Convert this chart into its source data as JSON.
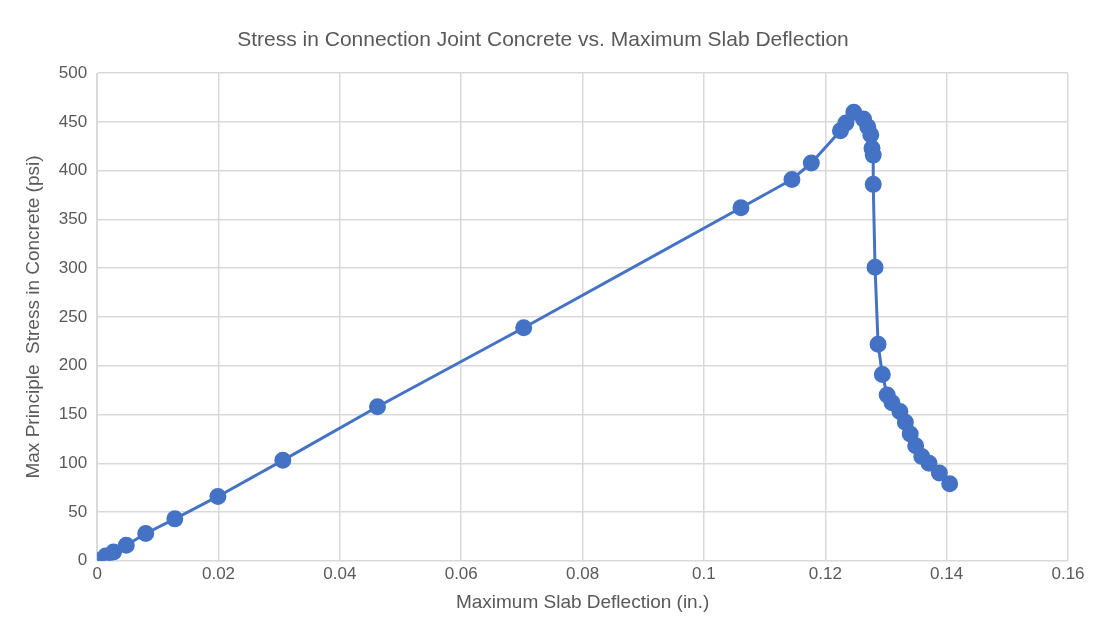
{
  "chart_data": {
    "type": "line",
    "title": "Stress in Connection Joint Concrete vs. Maximum Slab Deflection",
    "xlabel": "Maximum Slab Deflection (in.)",
    "ylabel": "Max Principle  Stress in Concrete (psi)",
    "x": [
      0,
      0.0014,
      0.0027,
      0.0048,
      0.008,
      0.0128,
      0.0199,
      0.0306,
      0.0462,
      0.0703,
      0.1061,
      0.1145,
      0.1177,
      0.1225,
      0.1234,
      0.1247,
      0.1263,
      0.127,
      0.1275,
      0.1277,
      0.1279,
      0.1279,
      0.1282,
      0.1287,
      0.1294,
      0.1302,
      0.131,
      0.1323,
      0.1332,
      0.134,
      0.1349,
      0.1359,
      0.1371,
      0.1388,
      0.1405
    ],
    "series": [
      {
        "color": "#4472c4",
        "values": [
          0,
          5,
          9,
          16,
          28,
          43,
          66,
          103,
          158,
          239,
          362,
          391,
          408,
          441,
          449,
          460,
          453,
          445,
          437,
          423,
          416,
          386,
          301,
          222,
          191,
          170,
          162,
          153,
          142,
          130,
          118,
          107,
          100,
          90,
          79
        ]
      }
    ],
    "xlim": [
      0,
      0.16
    ],
    "xticks": [
      0,
      0.02,
      0.04,
      0.06,
      0.08,
      0.1,
      0.12,
      0.14,
      0.16
    ],
    "ylim": [
      0,
      500
    ],
    "yticks": [
      0,
      50,
      100,
      150,
      200,
      250,
      300,
      350,
      400,
      450,
      500
    ],
    "grid": true,
    "legend": false,
    "marker": "circle",
    "line_style": "solid"
  }
}
